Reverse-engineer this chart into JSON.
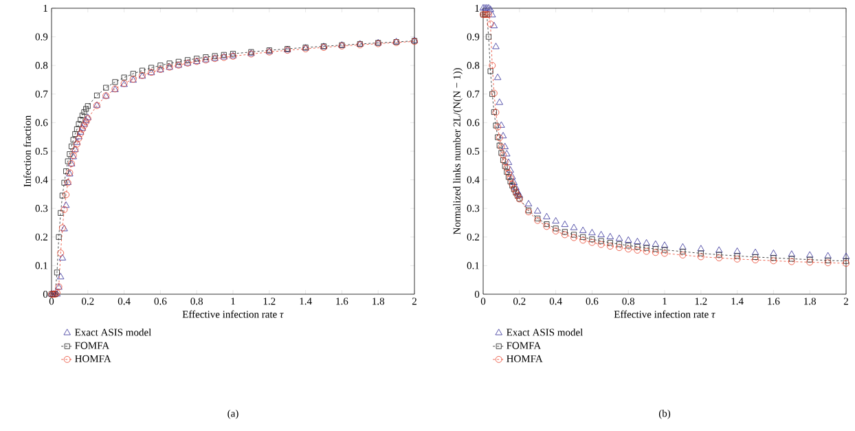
{
  "chart_data": [
    {
      "type": "line",
      "xlabel": "Effective infection rate *τ*",
      "ylabel": "Infection fraction",
      "x": [
        0,
        0.01,
        0.02,
        0.03,
        0.04,
        0.05,
        0.06,
        0.07,
        0.08,
        0.09,
        0.1,
        0.11,
        0.12,
        0.13,
        0.14,
        0.15,
        0.16,
        0.17,
        0.18,
        0.19,
        0.2,
        0.25,
        0.3,
        0.35,
        0.4,
        0.45,
        0.5,
        0.55,
        0.6,
        0.65,
        0.7,
        0.75,
        0.8,
        0.85,
        0.9,
        0.95,
        1.0,
        1.1,
        1.2,
        1.3,
        1.4,
        1.5,
        1.6,
        1.7,
        1.8,
        1.9,
        2.0
      ],
      "series": [
        {
          "name": "Exact ASIS model",
          "type": "scatter",
          "marker": "triangle",
          "color": "#2e2a96",
          "values": [
            0,
            0,
            0,
            0,
            0.024,
            0.06,
            0.126,
            0.228,
            0.31,
            0.39,
            0.42,
            0.455,
            0.48,
            0.505,
            0.53,
            0.55,
            0.566,
            0.58,
            0.594,
            0.606,
            0.617,
            0.66,
            0.692,
            0.715,
            0.733,
            0.748,
            0.762,
            0.774,
            0.784,
            0.793,
            0.8,
            0.807,
            0.813,
            0.819,
            0.824,
            0.829,
            0.833,
            0.841,
            0.848,
            0.854,
            0.86,
            0.865,
            0.87,
            0.874,
            0.878,
            0.882,
            0.886
          ]
        },
        {
          "name": "FOMFA",
          "type": "line",
          "marker": "square",
          "line_style": "dashed",
          "color": "#1a1a1a",
          "values": [
            0,
            0,
            0,
            0.076,
            0.2,
            0.284,
            0.345,
            0.39,
            0.43,
            0.465,
            0.49,
            0.517,
            0.54,
            0.56,
            0.577,
            0.595,
            0.61,
            0.625,
            0.637,
            0.648,
            0.658,
            0.695,
            0.722,
            0.742,
            0.758,
            0.771,
            0.782,
            0.792,
            0.8,
            0.807,
            0.813,
            0.819,
            0.824,
            0.829,
            0.833,
            0.837,
            0.841,
            0.847,
            0.853,
            0.858,
            0.863,
            0.867,
            0.871,
            0.875,
            0.879,
            0.882,
            0.886
          ]
        },
        {
          "name": "HOMFA",
          "type": "line",
          "marker": "circle",
          "line_style": "dashed",
          "color": "#e8412a",
          "values": [
            0,
            0,
            0,
            0.005,
            0.026,
            0.144,
            0.232,
            0.296,
            0.348,
            0.39,
            0.425,
            0.457,
            0.485,
            0.505,
            0.525,
            0.545,
            0.562,
            0.577,
            0.59,
            0.603,
            0.614,
            0.66,
            0.694,
            0.718,
            0.737,
            0.752,
            0.765,
            0.776,
            0.786,
            0.794,
            0.801,
            0.808,
            0.814,
            0.819,
            0.824,
            0.828,
            0.832,
            0.84,
            0.847,
            0.853,
            0.858,
            0.863,
            0.868,
            0.872,
            0.876,
            0.88,
            0.884
          ]
        }
      ],
      "xlim": [
        0,
        2
      ],
      "ylim": [
        0,
        1
      ],
      "xticks": [
        0,
        0.2,
        0.4,
        0.6,
        0.8,
        1,
        1.2,
        1.4,
        1.6,
        1.8,
        2
      ],
      "yticks": [
        0,
        0.1,
        0.2,
        0.3,
        0.4,
        0.5,
        0.6,
        0.7,
        0.8,
        0.9,
        1
      ],
      "legend": "bottom",
      "annotations": [
        "(a)"
      ]
    },
    {
      "type": "line",
      "xlabel": "Effective infection rate *τ*",
      "ylabel": "Normalized links number 2L/(N(N − 1))",
      "x": [
        0,
        0.01,
        0.02,
        0.03,
        0.04,
        0.05,
        0.06,
        0.07,
        0.08,
        0.09,
        0.1,
        0.11,
        0.12,
        0.13,
        0.14,
        0.15,
        0.16,
        0.17,
        0.18,
        0.19,
        0.2,
        0.25,
        0.3,
        0.35,
        0.4,
        0.45,
        0.5,
        0.55,
        0.6,
        0.65,
        0.7,
        0.75,
        0.8,
        0.85,
        0.9,
        0.95,
        1.0,
        1.1,
        1.2,
        1.3,
        1.4,
        1.5,
        1.6,
        1.7,
        1.8,
        1.9,
        2.0
      ],
      "series": [
        {
          "name": "Exact ASIS model",
          "type": "scatter",
          "marker": "triangle",
          "color": "#2e2a96",
          "values": [
            1,
            1,
            1,
            1,
            0.995,
            0.976,
            0.938,
            0.865,
            0.757,
            0.67,
            0.59,
            0.553,
            0.515,
            0.49,
            0.46,
            0.433,
            0.41,
            0.39,
            0.372,
            0.356,
            0.345,
            0.315,
            0.29,
            0.27,
            0.255,
            0.243,
            0.232,
            0.222,
            0.214,
            0.207,
            0.2,
            0.194,
            0.188,
            0.183,
            0.178,
            0.174,
            0.17,
            0.164,
            0.158,
            0.153,
            0.149,
            0.145,
            0.142,
            0.139,
            0.136,
            0.133,
            0.131
          ]
        },
        {
          "name": "FOMFA",
          "type": "line",
          "marker": "square",
          "line_style": "dashed",
          "color": "#1a1a1a",
          "values": [
            0.978,
            0.978,
            0.978,
            0.9,
            0.78,
            0.7,
            0.637,
            0.59,
            0.549,
            0.52,
            0.494,
            0.469,
            0.448,
            0.428,
            0.41,
            0.394,
            0.38,
            0.367,
            0.355,
            0.344,
            0.334,
            0.293,
            0.265,
            0.245,
            0.23,
            0.218,
            0.208,
            0.2,
            0.192,
            0.186,
            0.18,
            0.175,
            0.17,
            0.166,
            0.162,
            0.158,
            0.155,
            0.149,
            0.143,
            0.138,
            0.134,
            0.13,
            0.127,
            0.124,
            0.121,
            0.118,
            0.116
          ]
        },
        {
          "name": "HOMFA",
          "type": "line",
          "marker": "circle",
          "line_style": "dashed",
          "color": "#e8412a",
          "values": [
            0.978,
            0.978,
            0.978,
            0.978,
            0.945,
            0.8,
            0.703,
            0.636,
            0.585,
            0.547,
            0.515,
            0.487,
            0.463,
            0.442,
            0.423,
            0.406,
            0.385,
            0.37,
            0.357,
            0.345,
            0.333,
            0.288,
            0.258,
            0.237,
            0.221,
            0.208,
            0.198,
            0.189,
            0.181,
            0.174,
            0.168,
            0.163,
            0.158,
            0.154,
            0.15,
            0.146,
            0.143,
            0.137,
            0.131,
            0.127,
            0.123,
            0.12,
            0.117,
            0.114,
            0.112,
            0.11,
            0.108
          ]
        }
      ],
      "xlim": [
        0,
        2
      ],
      "ylim": [
        0,
        1
      ],
      "xticks": [
        0,
        0.2,
        0.4,
        0.6,
        0.8,
        1,
        1.2,
        1.4,
        1.6,
        1.8,
        2
      ],
      "yticks": [
        0,
        0.1,
        0.2,
        0.3,
        0.4,
        0.5,
        0.6,
        0.7,
        0.8,
        0.9,
        1
      ],
      "legend": "bottom",
      "annotations": [
        "(b)"
      ]
    }
  ]
}
